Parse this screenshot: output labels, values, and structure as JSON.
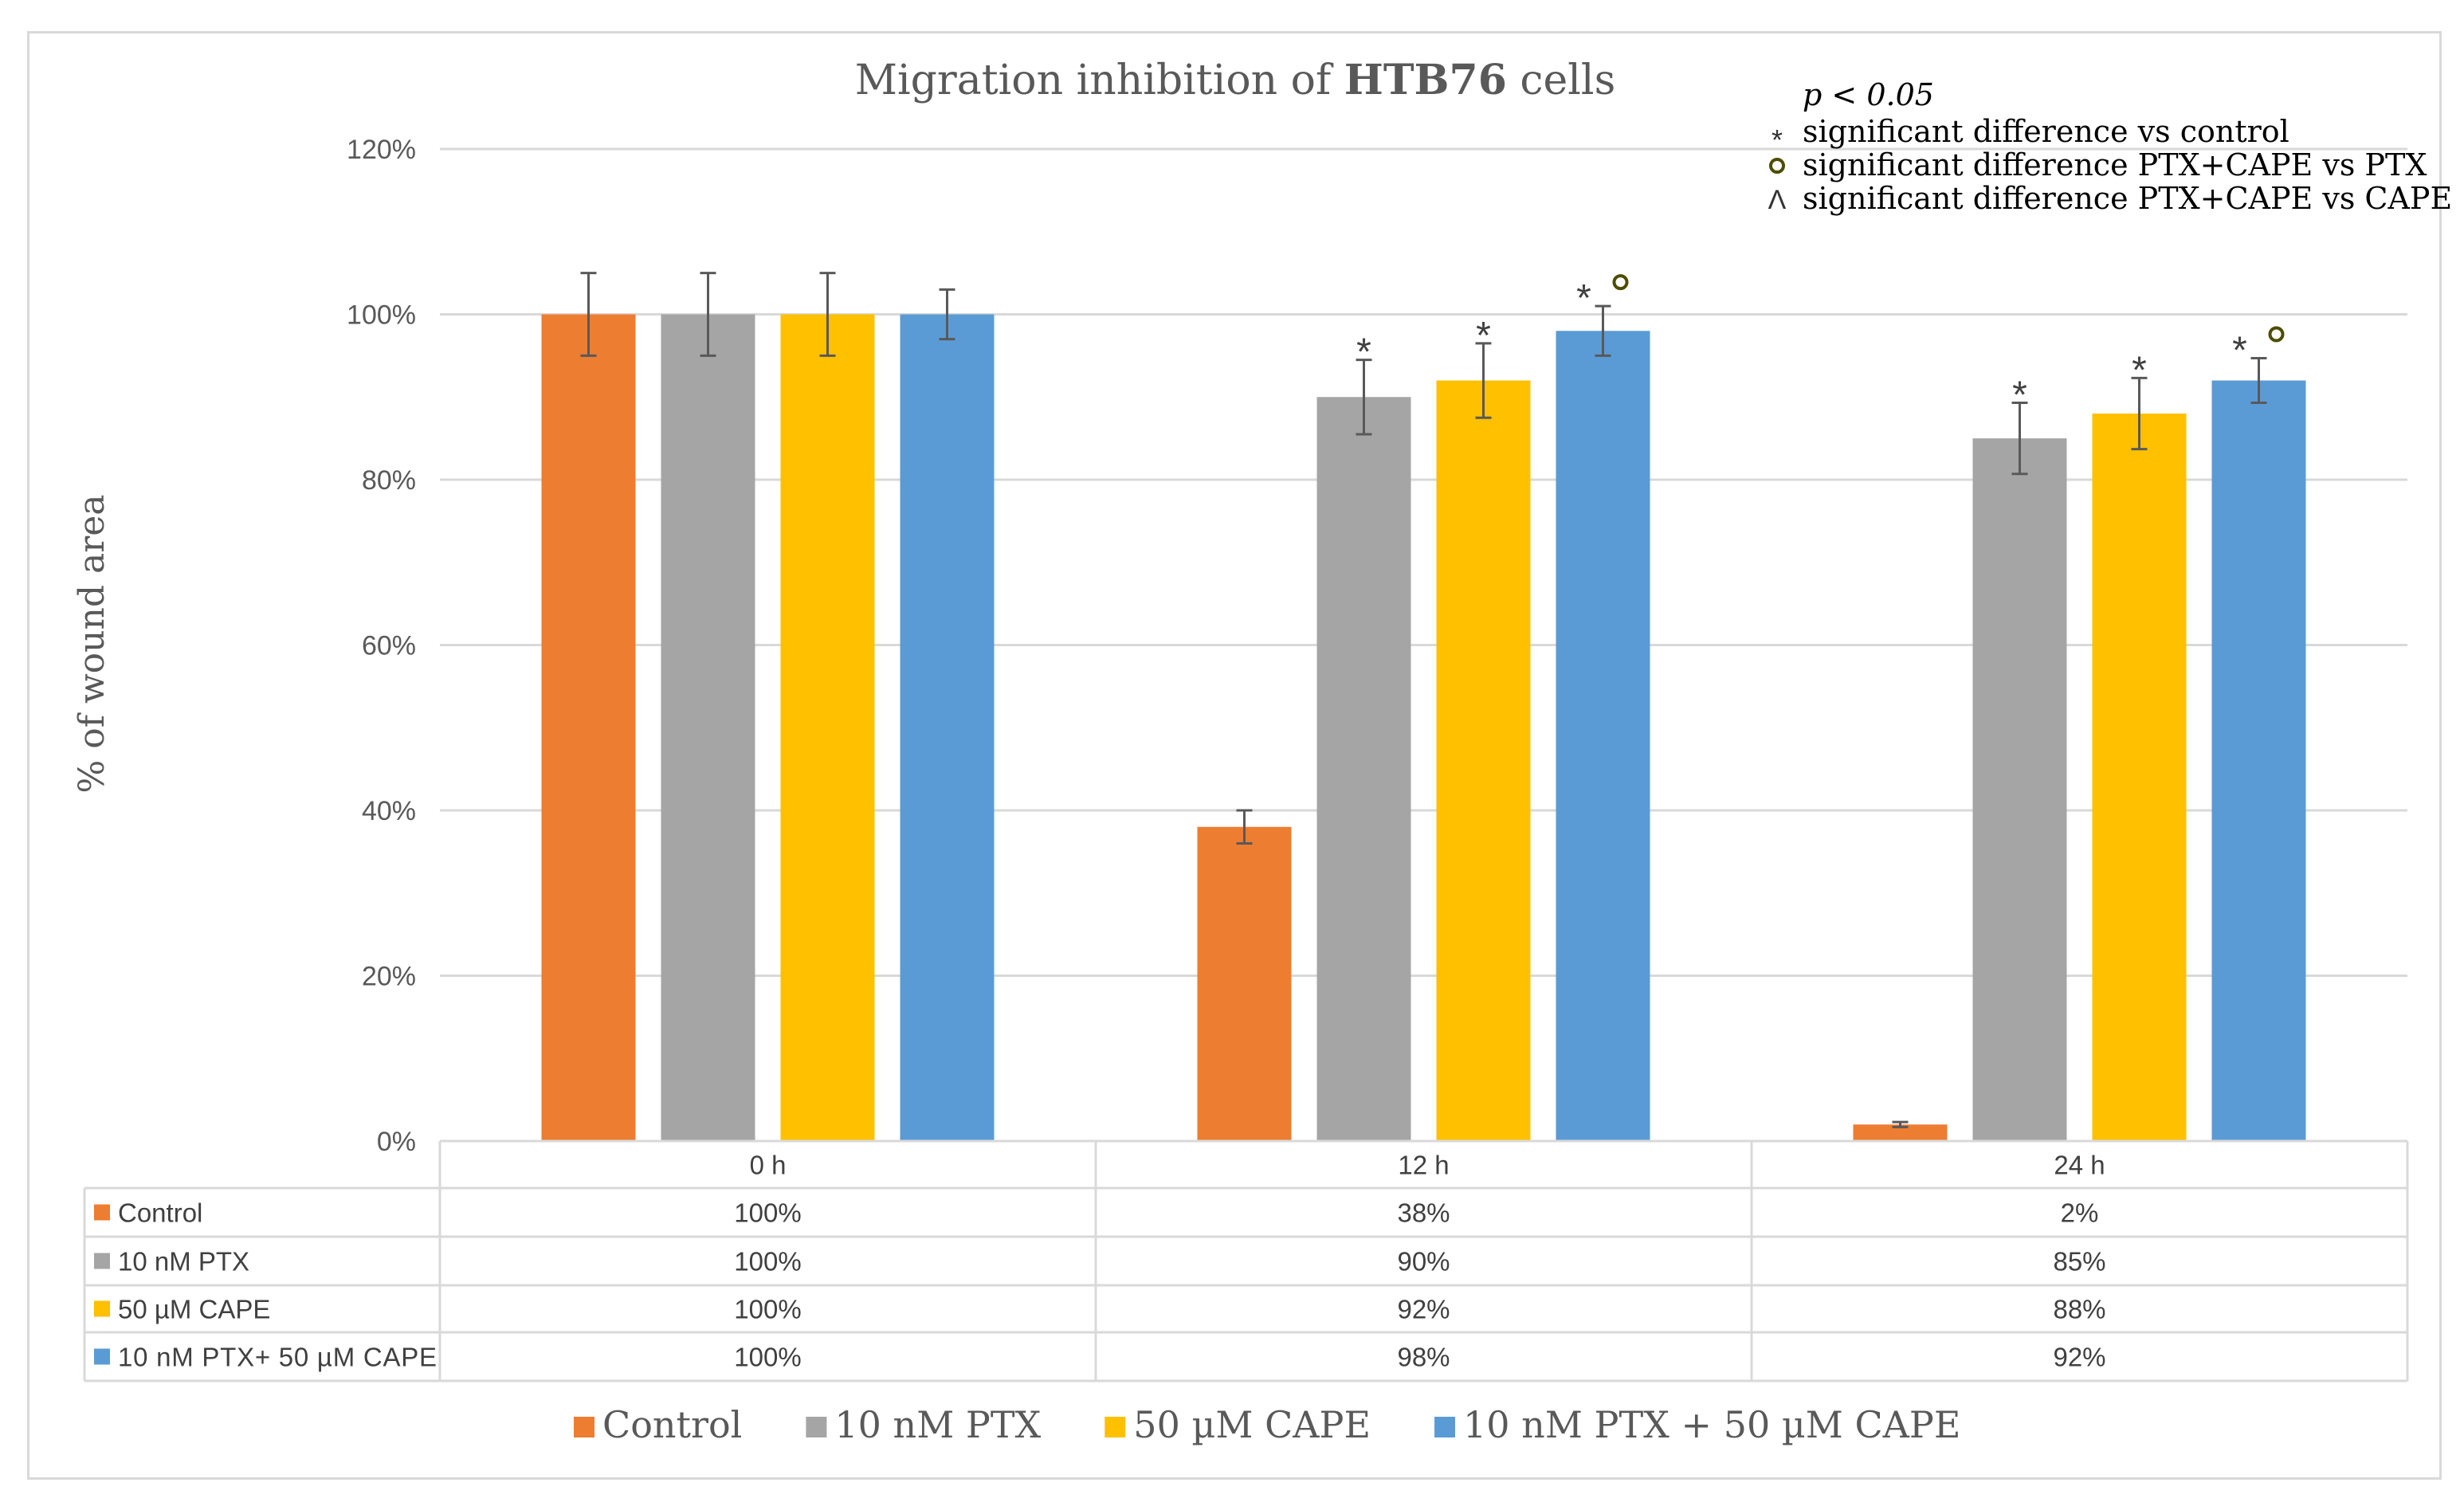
{
  "chart_data": {
    "type": "bar",
    "title_prefix": "Migration inhibition of ",
    "title_bold": "HTB76",
    "title_suffix": " cells",
    "ylabel": "% of wound area",
    "xlabel": "",
    "ylim": [
      0,
      120
    ],
    "yticks": [
      0,
      20,
      40,
      60,
      80,
      100,
      120
    ],
    "ytick_labels": [
      "0%",
      "20%",
      "40%",
      "60%",
      "80%",
      "100%",
      "120%"
    ],
    "grid": true,
    "categories": [
      "0 h",
      "12 h",
      "24 h"
    ],
    "series": [
      {
        "name": "Control",
        "color": "#ED7D31",
        "values": [
          100,
          38,
          2
        ],
        "errors": [
          5,
          2,
          0.3
        ],
        "labels": [
          "100%",
          "38%",
          "2%"
        ],
        "marks": [
          "",
          "",
          ""
        ],
        "table_name": "Control"
      },
      {
        "name": "10 nM PTX",
        "color": "#A5A5A5",
        "values": [
          100,
          90,
          85
        ],
        "errors": [
          5,
          4.5,
          4.3
        ],
        "labels": [
          "100%",
          "90%",
          "85%"
        ],
        "marks": [
          "",
          "*",
          "*"
        ],
        "table_name": "10 nM PTX"
      },
      {
        "name": "50 µM CAPE",
        "color": "#FFC000",
        "values": [
          100,
          92,
          88
        ],
        "errors": [
          5,
          4.5,
          4.3
        ],
        "labels": [
          "100%",
          "92%",
          "88%"
        ],
        "marks": [
          "",
          "*",
          "*"
        ],
        "table_name": "50 µM CAPE"
      },
      {
        "name": "10 nM PTX + 50 µM CAPE",
        "color": "#5B9BD5",
        "values": [
          100,
          98,
          92
        ],
        "errors": [
          3,
          3,
          2.7
        ],
        "labels": [
          "100%",
          "98%",
          "92%"
        ],
        "marks": [
          "",
          "* o",
          "* o"
        ],
        "table_name": "10 nM PTX+ 50 µM CAPE"
      }
    ],
    "legend_position": "bottom",
    "annotations": {
      "p_value": "p < 0.05",
      "items": [
        {
          "symbol": "*",
          "text": "significant difference vs control"
        },
        {
          "symbol": "o",
          "text": "significant difference PTX+CAPE vs PTX"
        },
        {
          "symbol": "^",
          "text": "significant difference PTX+CAPE vs CAPE"
        }
      ]
    }
  }
}
